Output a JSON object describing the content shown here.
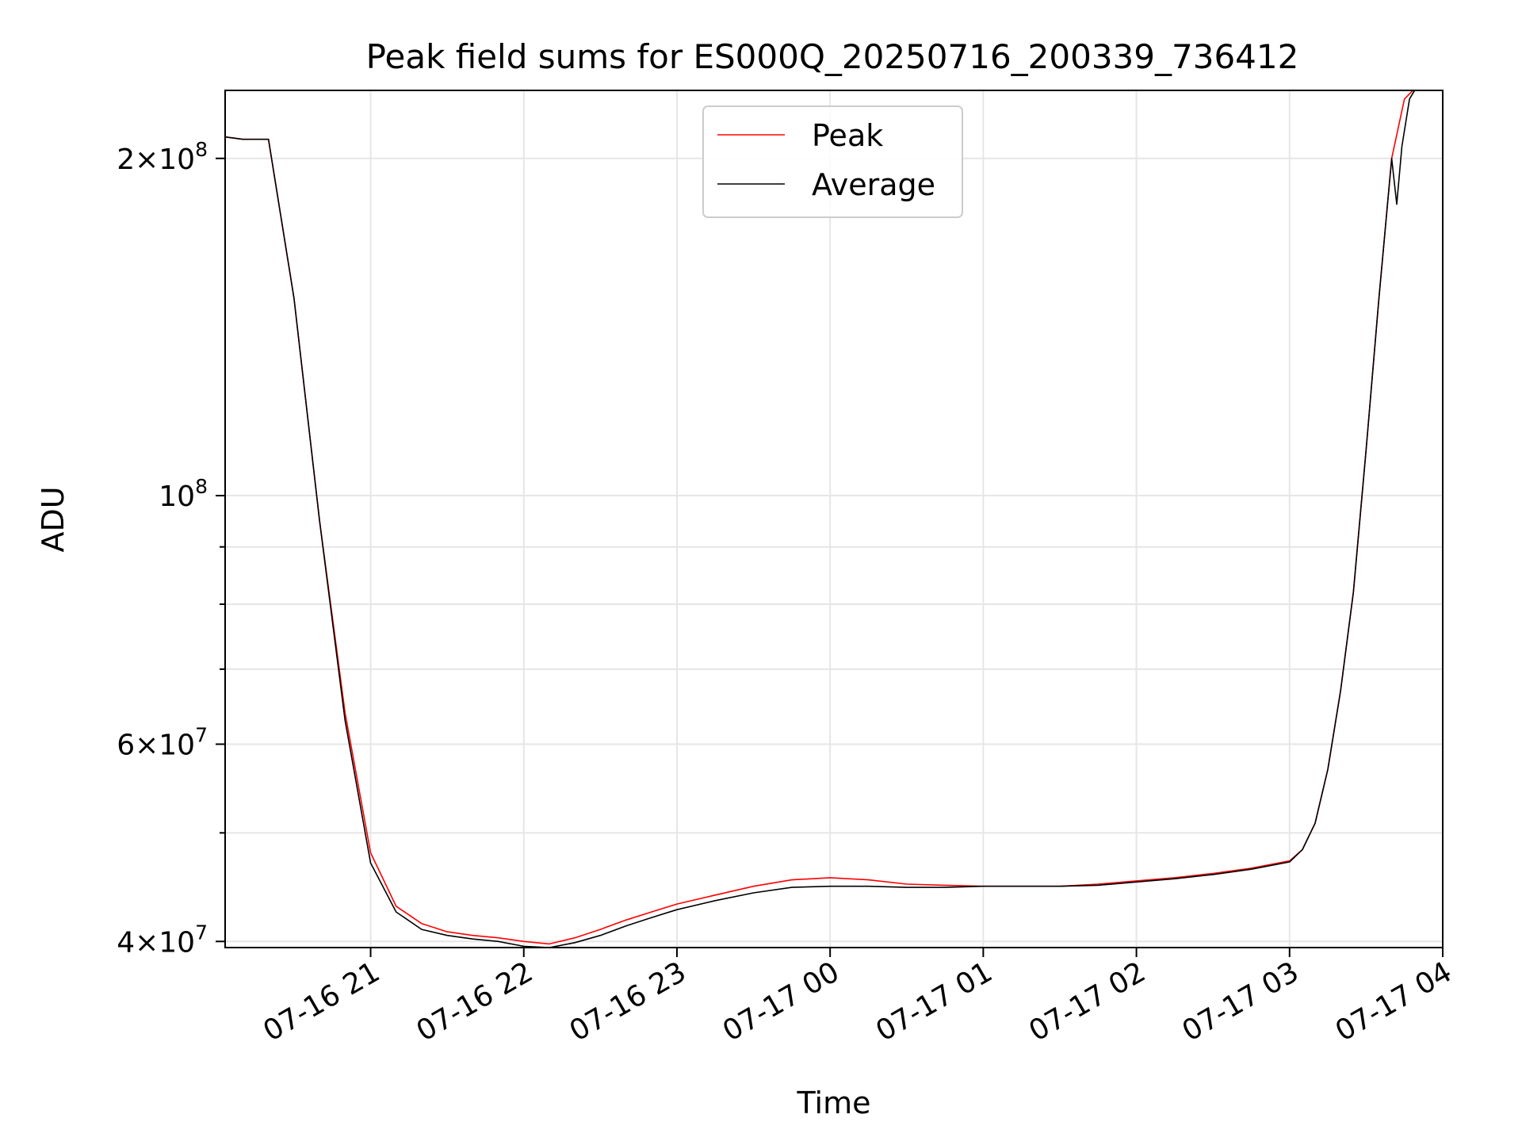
{
  "chart_data": {
    "type": "line",
    "title": "Peak field sums for ES000Q_20250716_200339_736412",
    "xlabel": "Time",
    "ylabel": "ADU",
    "yscale": "log",
    "grid": true,
    "legend_position": "top-center",
    "xlim": [
      "2025-07-16 20:03",
      "2025-07-17 04:00"
    ],
    "ylim": [
      39500000,
      230000000
    ],
    "x_ticks": [
      {
        "x": "2025-07-16 21:00",
        "label": "07-16 21"
      },
      {
        "x": "2025-07-16 22:00",
        "label": "07-16 22"
      },
      {
        "x": "2025-07-16 23:00",
        "label": "07-16 23"
      },
      {
        "x": "2025-07-17 00:00",
        "label": "07-17 00"
      },
      {
        "x": "2025-07-17 01:00",
        "label": "07-17 01"
      },
      {
        "x": "2025-07-17 02:00",
        "label": "07-17 02"
      },
      {
        "x": "2025-07-17 03:00",
        "label": "07-17 03"
      },
      {
        "x": "2025-07-17 04:00",
        "label": "07-17 04"
      }
    ],
    "y_ticks": [
      {
        "y": 40000000,
        "mant": "4",
        "exp": "7"
      },
      {
        "y": 60000000,
        "mant": "6",
        "exp": "7"
      },
      {
        "y": 100000000,
        "mant": "",
        "exp": "8"
      },
      {
        "y": 200000000,
        "mant": "2",
        "exp": "8"
      }
    ],
    "y_minor_ticks": [
      50000000,
      70000000,
      80000000,
      90000000
    ],
    "series": [
      {
        "name": "Peak",
        "color": "#ff0000",
        "x": [
          "2025-07-16 20:03",
          "2025-07-16 20:10",
          "2025-07-16 20:20",
          "2025-07-16 20:30",
          "2025-07-16 20:40",
          "2025-07-16 20:50",
          "2025-07-16 21:00",
          "2025-07-16 21:10",
          "2025-07-16 21:20",
          "2025-07-16 21:30",
          "2025-07-16 21:40",
          "2025-07-16 21:50",
          "2025-07-16 22:00",
          "2025-07-16 22:10",
          "2025-07-16 22:20",
          "2025-07-16 22:30",
          "2025-07-16 22:40",
          "2025-07-16 22:50",
          "2025-07-16 23:00",
          "2025-07-16 23:15",
          "2025-07-16 23:30",
          "2025-07-16 23:45",
          "2025-07-17 00:00",
          "2025-07-17 00:15",
          "2025-07-17 00:30",
          "2025-07-17 00:45",
          "2025-07-17 01:00",
          "2025-07-17 01:15",
          "2025-07-17 01:30",
          "2025-07-17 01:45",
          "2025-07-17 02:00",
          "2025-07-17 02:15",
          "2025-07-17 02:30",
          "2025-07-17 02:45",
          "2025-07-17 03:00",
          "2025-07-17 03:05",
          "2025-07-17 03:10",
          "2025-07-17 03:15",
          "2025-07-17 03:20",
          "2025-07-17 03:25",
          "2025-07-17 03:30",
          "2025-07-17 03:35",
          "2025-07-17 03:40",
          "2025-07-17 03:45",
          "2025-07-17 03:50"
        ],
        "y": [
          209000000,
          208000000,
          208000000,
          150000000,
          95000000,
          64000000,
          48000000,
          43000000,
          41500000,
          40800000,
          40500000,
          40300000,
          40000000,
          39800000,
          40300000,
          41000000,
          41800000,
          42500000,
          43200000,
          44000000,
          44800000,
          45400000,
          45600000,
          45400000,
          45000000,
          44900000,
          44800000,
          44800000,
          44800000,
          45000000,
          45300000,
          45600000,
          46000000,
          46500000,
          47200000,
          48300000,
          51000000,
          57000000,
          67000000,
          82000000,
          110000000,
          150000000,
          200000000,
          226000000,
          232000000
        ]
      },
      {
        "name": "Average",
        "color": "#000000",
        "x": [
          "2025-07-16 20:03",
          "2025-07-16 20:10",
          "2025-07-16 20:20",
          "2025-07-16 20:30",
          "2025-07-16 20:40",
          "2025-07-16 20:50",
          "2025-07-16 21:00",
          "2025-07-16 21:10",
          "2025-07-16 21:20",
          "2025-07-16 21:30",
          "2025-07-16 21:40",
          "2025-07-16 21:50",
          "2025-07-16 22:00",
          "2025-07-16 22:10",
          "2025-07-16 22:20",
          "2025-07-16 22:30",
          "2025-07-16 22:40",
          "2025-07-16 22:50",
          "2025-07-16 23:00",
          "2025-07-16 23:15",
          "2025-07-16 23:30",
          "2025-07-16 23:45",
          "2025-07-17 00:00",
          "2025-07-17 00:15",
          "2025-07-17 00:30",
          "2025-07-17 00:45",
          "2025-07-17 01:00",
          "2025-07-17 01:15",
          "2025-07-17 01:30",
          "2025-07-17 01:45",
          "2025-07-17 02:00",
          "2025-07-17 02:15",
          "2025-07-17 02:30",
          "2025-07-17 02:45",
          "2025-07-17 03:00",
          "2025-07-17 03:05",
          "2025-07-17 03:10",
          "2025-07-17 03:15",
          "2025-07-17 03:20",
          "2025-07-17 03:25",
          "2025-07-17 03:30",
          "2025-07-17 03:35",
          "2025-07-17 03:40",
          "2025-07-17 03:42",
          "2025-07-17 03:44",
          "2025-07-17 03:47",
          "2025-07-17 03:50"
        ],
        "y": [
          209000000,
          208000000,
          208000000,
          150000000,
          95000000,
          63000000,
          47000000,
          42500000,
          41000000,
          40500000,
          40200000,
          40000000,
          39600000,
          39500000,
          39900000,
          40500000,
          41300000,
          42000000,
          42700000,
          43500000,
          44200000,
          44700000,
          44800000,
          44800000,
          44700000,
          44700000,
          44800000,
          44800000,
          44800000,
          44900000,
          45200000,
          45500000,
          45900000,
          46400000,
          47100000,
          48300000,
          51000000,
          57000000,
          67000000,
          82000000,
          110000000,
          150000000,
          200000000,
          182000000,
          205000000,
          226000000,
          232000000
        ]
      }
    ]
  }
}
